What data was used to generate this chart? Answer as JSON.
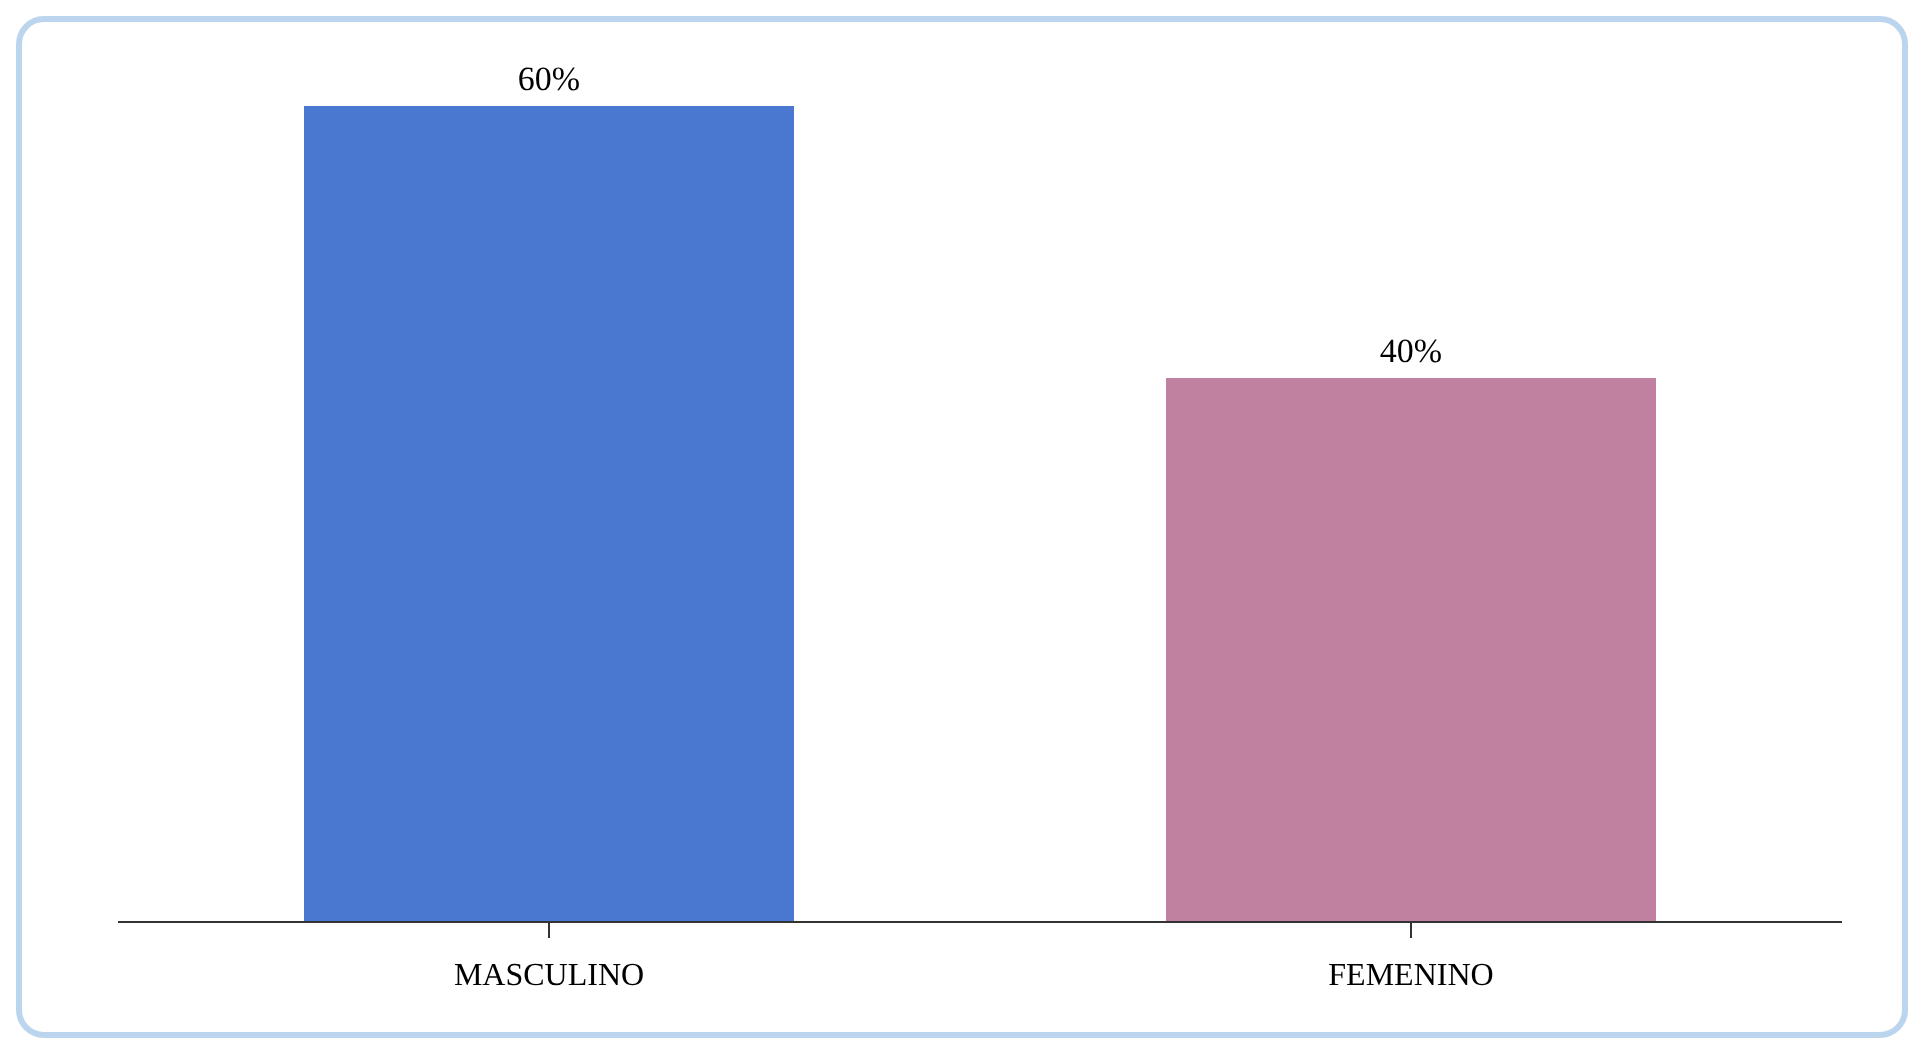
{
  "chart_data": {
    "type": "bar",
    "categories": [
      "MASCULINO",
      "FEMENINO"
    ],
    "values": [
      60,
      40
    ],
    "colors": [
      "#4a78d0",
      "#c080a0"
    ],
    "value_labels": [
      "60%",
      "40%"
    ]
  }
}
